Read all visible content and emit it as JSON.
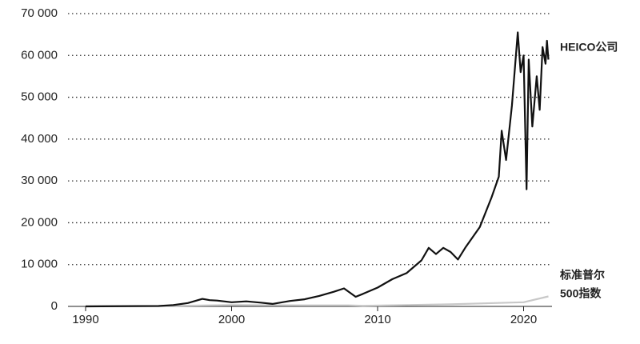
{
  "chart_data": {
    "type": "line",
    "series": [
      {
        "name": "HEICO公司",
        "color": "#111111",
        "x": [
          1990,
          1995,
          1996,
          1997,
          1998,
          1998.5,
          1999,
          2000,
          2001,
          2002,
          2002.8,
          2004,
          2005,
          2006,
          2007,
          2007.7,
          2008.5,
          2009,
          2010,
          2011,
          2012,
          2013,
          2013.5,
          2014,
          2014.5,
          2015,
          2015.5,
          2016,
          2017,
          2017.8,
          2018.3,
          2018.5,
          2018.8,
          2019.2,
          2019.6,
          2019.8,
          2020.0,
          2020.2,
          2020.35,
          2020.6,
          2020.9,
          2021.1,
          2021.3,
          2021.5,
          2021.6,
          2021.7
        ],
        "values": [
          0,
          100,
          300,
          800,
          1800,
          1500,
          1400,
          1000,
          1200,
          900,
          600,
          1300,
          1700,
          2500,
          3500,
          4300,
          2300,
          3000,
          4500,
          6500,
          8000,
          11000,
          14000,
          12500,
          14000,
          13000,
          11200,
          14000,
          19000,
          26000,
          31000,
          42000,
          35000,
          48000,
          65500,
          56000,
          60000,
          28000,
          59000,
          43000,
          55000,
          47000,
          62000,
          58000,
          63500,
          59000
        ]
      },
      {
        "name": "标准普尔500指数",
        "color": "#c8c8c8",
        "x": [
          1990,
          1995,
          2000,
          2005,
          2008,
          2009,
          2012,
          2015,
          2018,
          2020,
          2021.7
        ],
        "values": [
          50,
          100,
          300,
          250,
          250,
          150,
          300,
          500,
          800,
          1000,
          2400
        ]
      }
    ],
    "series_labels": [
      [
        "HEICO公司"
      ],
      [
        "标准普尔",
        "500指数"
      ]
    ],
    "xlim": [
      1990,
      2022
    ],
    "xticks": [
      1990,
      2000,
      2010,
      2020
    ],
    "ylim": [
      0,
      70000
    ],
    "yticks": [
      0,
      {
        "value": 10000,
        "label": "10 000"
      },
      {
        "value": 20000,
        "label": "20 000"
      },
      {
        "value": 30000,
        "label": "30 000"
      },
      {
        "value": 40000,
        "label": "40 000"
      },
      {
        "value": 50000,
        "label": "50 000"
      },
      {
        "value": 60000,
        "label": "60 000"
      },
      {
        "value": 70000,
        "label": "70 000"
      }
    ],
    "grid": true
  }
}
